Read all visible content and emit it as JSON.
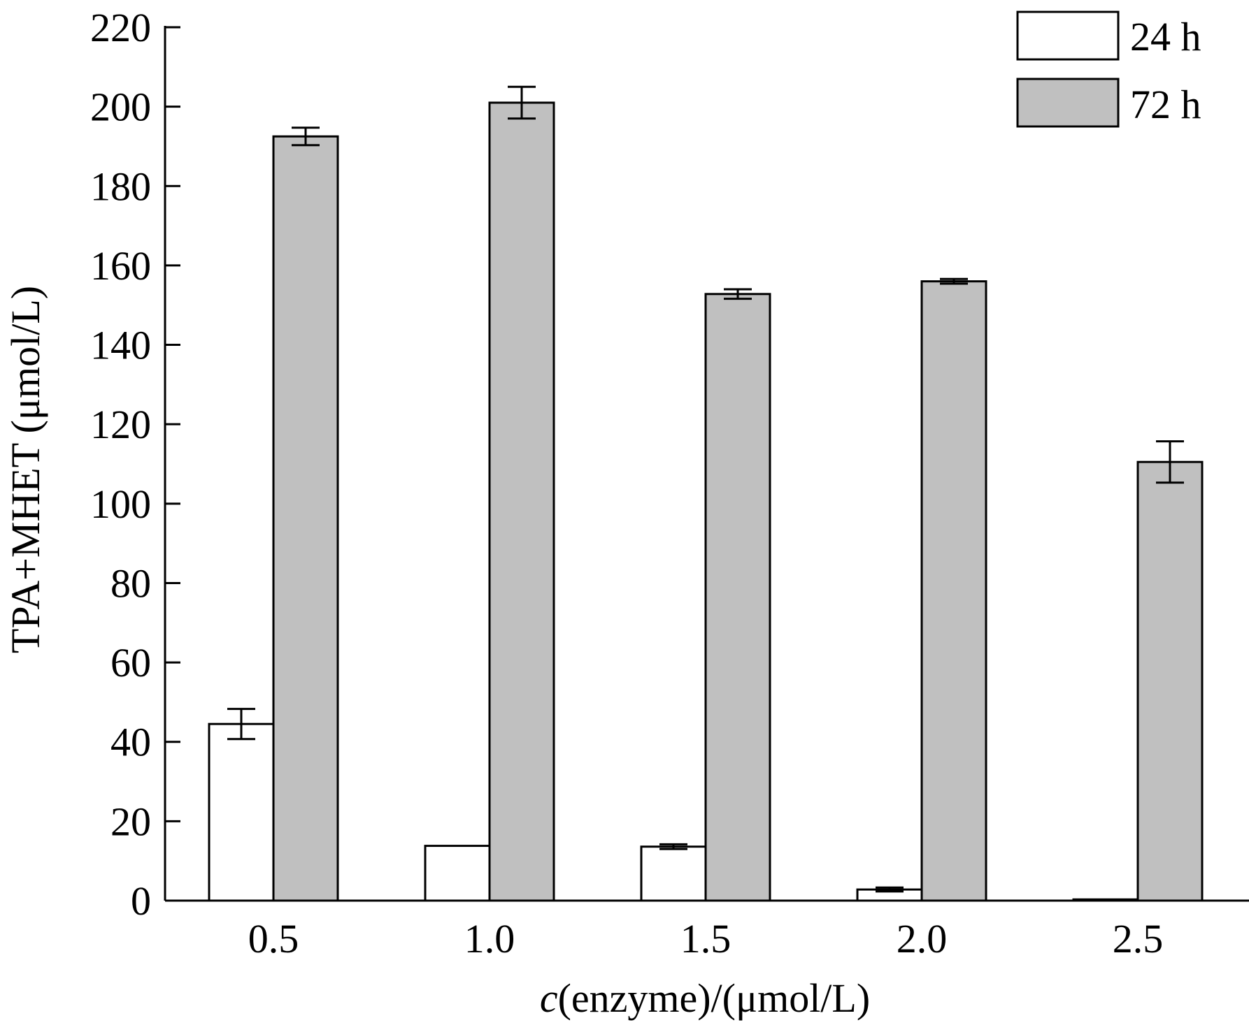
{
  "chart_data": {
    "type": "bar",
    "xlabel_prefix": "c",
    "xlabel_rest": "(enzyme)/(μmol/L)",
    "ylabel": "TPA+MHET (μmol/L)",
    "categories": [
      "0.5",
      "1.0",
      "1.5",
      "2.0",
      "2.5"
    ],
    "ylim": [
      0,
      220
    ],
    "yticks": [
      0,
      20,
      40,
      60,
      80,
      100,
      120,
      140,
      160,
      180,
      200,
      220
    ],
    "grid": false,
    "legend_position": "top-right",
    "series": [
      {
        "name": "24 h",
        "color": "#ffffff",
        "values": [
          44.5,
          13.8,
          13.6,
          2.8,
          0.3
        ],
        "errors": [
          3.8,
          0,
          0.6,
          0.5,
          0
        ]
      },
      {
        "name": "72 h",
        "color": "#c0c0c0",
        "values": [
          192.5,
          201,
          152.8,
          156,
          110.5
        ],
        "errors": [
          2.2,
          4,
          1.2,
          0.6,
          5.2
        ]
      }
    ]
  }
}
